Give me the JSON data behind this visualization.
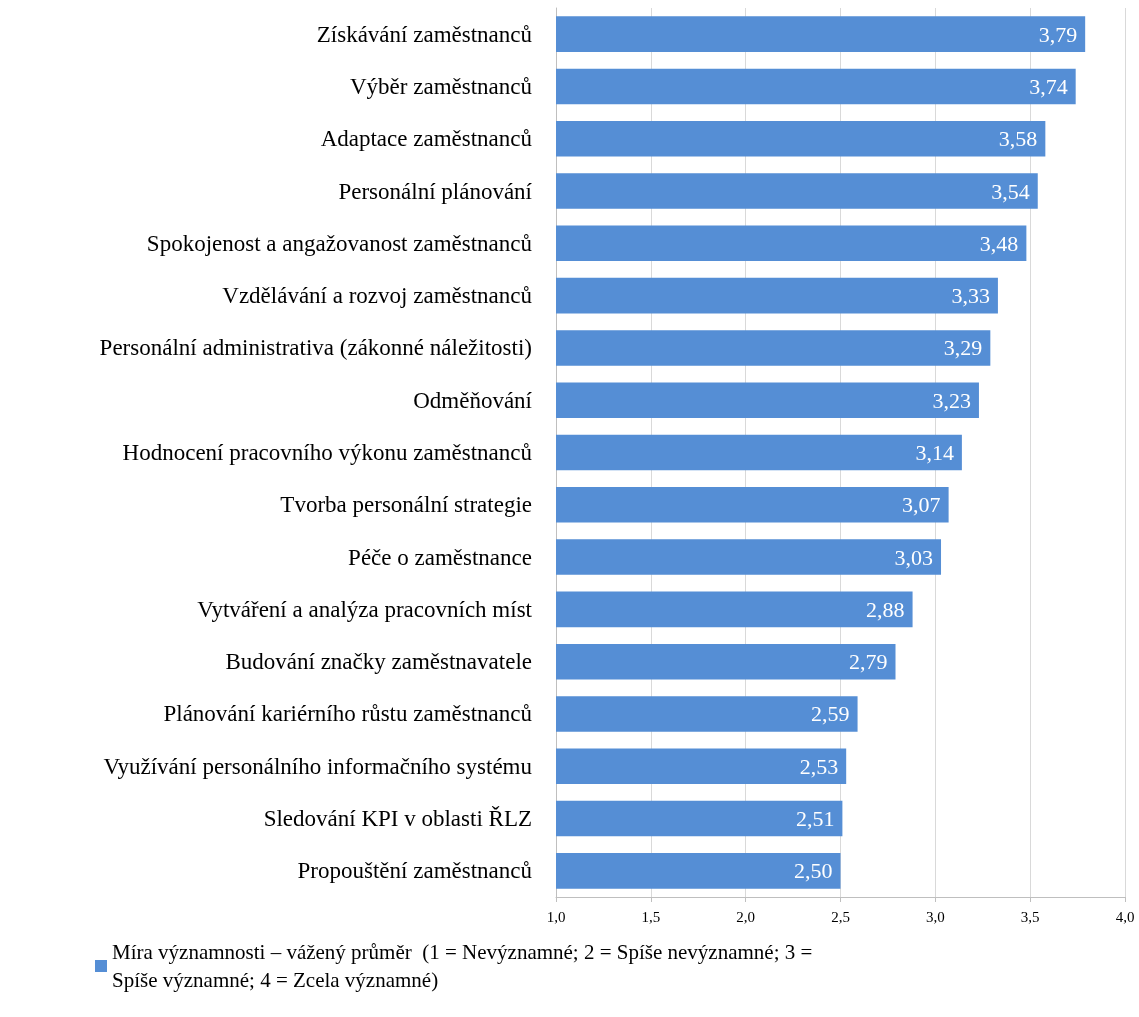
{
  "chart_data": {
    "type": "bar",
    "orientation": "horizontal",
    "categories": [
      "Získávání zaměstnanců",
      "Výběr zaměstnanců",
      "Adaptace zaměstnanců",
      "Personální plánování",
      "Spokojenost a angažovanost zaměstnanců",
      "Vzdělávání a rozvoj zaměstnanců",
      "Personální administrativa (zákonné náležitosti)",
      "Odměňování",
      "Hodnocení pracovního výkonu zaměstnanců",
      "Tvorba personální strategie",
      "Péče o zaměstnance",
      "Vytváření a analýza pracovních míst",
      "Budování značky zaměstnavatele",
      "Plánování kariérního růstu zaměstnanců",
      "Využívání personálního informačního systému",
      "Sledování KPI v oblasti ŘLZ",
      "Propouštění zaměstnanců"
    ],
    "series": [
      {
        "name": "Míra významnosti – vážený průměr  (1 = Nevýznamné; 2 = Spíše nevýznamné; 3 = Spíše významné; 4 = Zcela významné)",
        "color": "#558ed5",
        "values": [
          3.79,
          3.74,
          3.58,
          3.54,
          3.48,
          3.33,
          3.29,
          3.23,
          3.14,
          3.07,
          3.03,
          2.88,
          2.79,
          2.59,
          2.53,
          2.51,
          2.5
        ],
        "value_labels": [
          "3,79",
          "3,74",
          "3,58",
          "3,54",
          "3,48",
          "3,33",
          "3,29",
          "3,23",
          "3,14",
          "3,07",
          "3,03",
          "2,88",
          "2,79",
          "2,59",
          "2,53",
          "2,51",
          "2,50"
        ]
      }
    ],
    "xlim": [
      1.0,
      4.0
    ],
    "xticks": [
      {
        "value": 1.0,
        "label": "1,0"
      },
      {
        "value": 1.5,
        "label": "1,5"
      },
      {
        "value": 2.0,
        "label": "2,0"
      },
      {
        "value": 2.5,
        "label": "2,5"
      },
      {
        "value": 3.0,
        "label": "3,0"
      },
      {
        "value": 3.5,
        "label": "3,5"
      },
      {
        "value": 4.0,
        "label": "4,0"
      }
    ],
    "grid": "x",
    "legend": "bottom"
  }
}
